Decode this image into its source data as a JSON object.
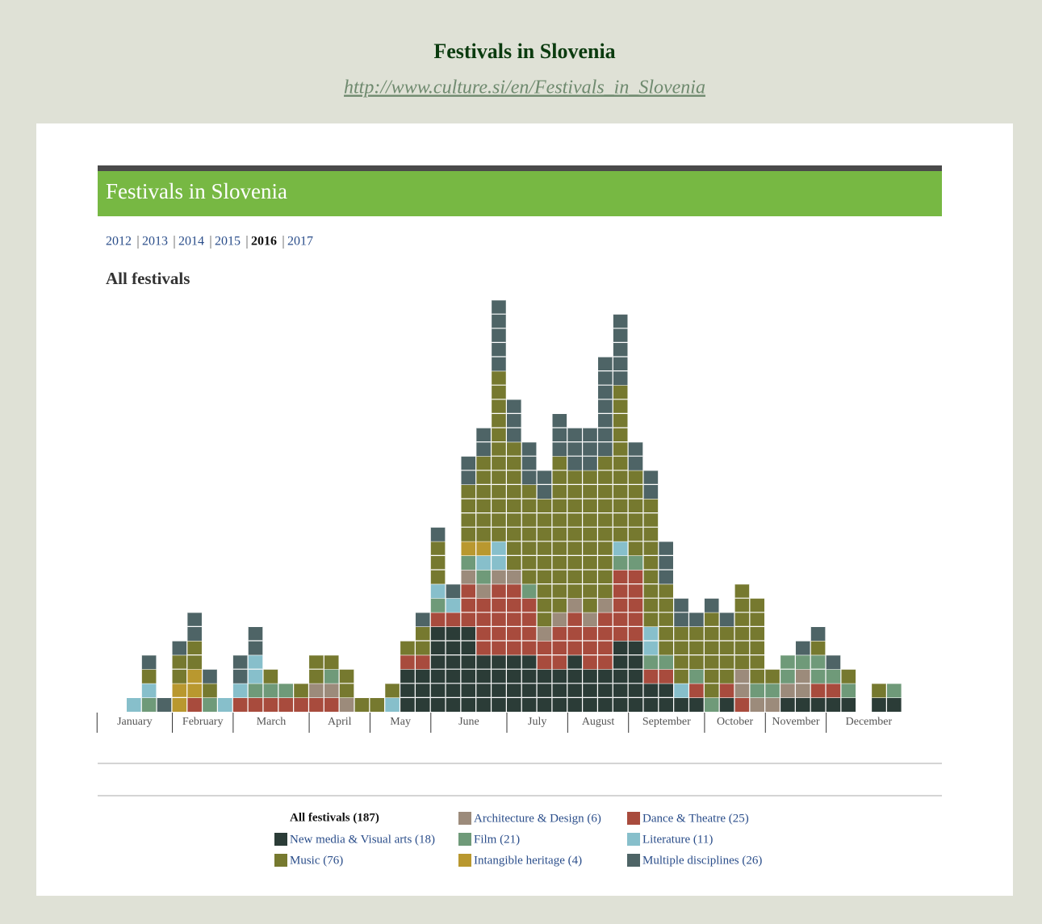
{
  "page_title": "Festivals in Slovenia",
  "source_url": "http://www.culture.si/en/Festivals_in_Slovenia",
  "banner": "Festivals in Slovenia",
  "years": [
    "2012",
    "2013",
    "2014",
    "2015",
    "2016",
    "2017"
  ],
  "selected_year": "2016",
  "chart_data": {
    "type": "stacked-waffle",
    "title": "All festivals",
    "months": [
      "January",
      "February",
      "March",
      "April",
      "May",
      "June",
      "July",
      "August",
      "September",
      "October",
      "November",
      "December"
    ],
    "legend_title": "All festivals (187)",
    "series": [
      {
        "name": "New media & Visual arts (18)",
        "color": "#2b3c37",
        "values": [
          0,
          0,
          0,
          0,
          0,
          0,
          0,
          0,
          0,
          0,
          0,
          0,
          0,
          0,
          0,
          0,
          0,
          0,
          3,
          3,
          6,
          6,
          6,
          4,
          4,
          4,
          4,
          3,
          3,
          4,
          3,
          3,
          5,
          5,
          2,
          2,
          1,
          1,
          0,
          1,
          0,
          0,
          0,
          1,
          1,
          1,
          1,
          1,
          0,
          1,
          1
        ]
      },
      {
        "name": "Dance & Theatre (25)",
        "color": "#a84b3d",
        "values": [
          0,
          0,
          0,
          0,
          1,
          0,
          0,
          1,
          1,
          1,
          1,
          1,
          1,
          1,
          0,
          0,
          0,
          0,
          1,
          1,
          1,
          1,
          3,
          4,
          5,
          5,
          4,
          2,
          3,
          3,
          3,
          4,
          5,
          5,
          1,
          1,
          0,
          1,
          0,
          1,
          1,
          0,
          0,
          0,
          0,
          1,
          1,
          0,
          0,
          0,
          0
        ]
      },
      {
        "name": "Architecture & Design (6)",
        "color": "#9c8b7b",
        "values": [
          0,
          0,
          0,
          0,
          0,
          0,
          0,
          0,
          0,
          0,
          0,
          0,
          1,
          1,
          1,
          0,
          0,
          0,
          0,
          0,
          0,
          0,
          1,
          1,
          1,
          1,
          0,
          1,
          1,
          1,
          1,
          1,
          0,
          0,
          0,
          0,
          0,
          0,
          0,
          0,
          2,
          1,
          1,
          1,
          2,
          0,
          0,
          0,
          0,
          0,
          0
        ]
      },
      {
        "name": "Film (21)",
        "color": "#6f9a79",
        "values": [
          0,
          1,
          0,
          0,
          0,
          1,
          0,
          0,
          1,
          1,
          1,
          0,
          0,
          1,
          0,
          0,
          0,
          0,
          0,
          0,
          1,
          0,
          1,
          1,
          0,
          0,
          1,
          0,
          0,
          0,
          0,
          0,
          1,
          1,
          1,
          1,
          0,
          1,
          1,
          0,
          0,
          1,
          1,
          2,
          1,
          2,
          1,
          1,
          0,
          0,
          1
        ]
      },
      {
        "name": "Literature (11)",
        "color": "#87bfcb",
        "values": [
          1,
          1,
          0,
          0,
          0,
          0,
          1,
          1,
          2,
          0,
          0,
          0,
          0,
          0,
          0,
          0,
          0,
          1,
          0,
          0,
          1,
          1,
          0,
          1,
          2,
          0,
          0,
          0,
          0,
          0,
          0,
          0,
          1,
          0,
          2,
          0,
          1,
          0,
          0,
          0,
          0,
          0,
          0,
          0,
          0,
          0,
          0,
          0,
          0,
          0,
          0
        ]
      },
      {
        "name": "Intangible heritage (4)",
        "color": "#b9982f",
        "values": [
          0,
          0,
          0,
          2,
          2,
          0,
          0,
          0,
          0,
          0,
          0,
          0,
          0,
          0,
          0,
          0,
          0,
          0,
          0,
          0,
          0,
          0,
          1,
          1,
          0,
          0,
          0,
          0,
          0,
          0,
          0,
          0,
          0,
          0,
          0,
          0,
          0,
          0,
          0,
          0,
          0,
          0,
          0,
          0,
          0,
          0,
          0,
          0,
          0,
          0,
          0
        ]
      },
      {
        "name": "Music (76)",
        "color": "#76792f",
        "values": [
          0,
          1,
          0,
          2,
          2,
          1,
          0,
          0,
          0,
          1,
          0,
          1,
          2,
          1,
          2,
          1,
          1,
          1,
          1,
          2,
          3,
          0,
          4,
          6,
          12,
          9,
          7,
          9,
          11,
          9,
          10,
          10,
          11,
          6,
          9,
          5,
          4,
          3,
          6,
          4,
          6,
          6,
          1,
          0,
          0,
          1,
          0,
          1,
          0,
          1,
          0
        ]
      },
      {
        "name": "Multiple disciplines (26)",
        "color": "#4e6466",
        "values": [
          0,
          1,
          1,
          1,
          2,
          1,
          0,
          2,
          2,
          0,
          0,
          0,
          0,
          0,
          0,
          0,
          0,
          0,
          0,
          1,
          1,
          1,
          2,
          2,
          5,
          3,
          3,
          2,
          3,
          3,
          3,
          7,
          5,
          2,
          2,
          3,
          2,
          1,
          1,
          1,
          0,
          0,
          0,
          0,
          1,
          1,
          1,
          0,
          0,
          0,
          0
        ]
      }
    ]
  }
}
